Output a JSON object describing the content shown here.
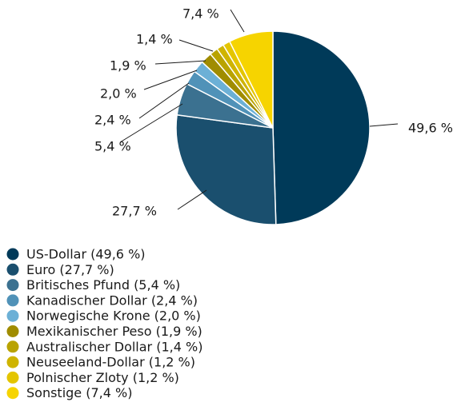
{
  "chart_data": {
    "type": "pie",
    "categories": [
      "US-Dollar (49,6 %)",
      "Euro (27,7 %)",
      "Britisches Pfund (5,4 %)",
      "Kanadischer Dollar (2,4 %)",
      "Norwegische Krone (2,0 %)",
      "Mexikanischer Peso (1,9 %)",
      "Australischer Dollar (1,4 %)",
      "Neuseeland-Dollar (1,2 %)",
      "Polnischer Zloty (1,2 %)",
      "Sonstige (7,4 %)"
    ],
    "values": [
      49.6,
      27.7,
      5.4,
      2.4,
      2.0,
      1.9,
      1.4,
      1.2,
      1.2,
      7.4
    ],
    "value_labels": [
      "49,6 %",
      "27,7 %",
      "5,4 %",
      "2,4 %",
      "2,0 %",
      "1,9 %",
      "1,4 %",
      null,
      null,
      "7,4 %"
    ],
    "colors": [
      "#003a59",
      "#1a4f6e",
      "#3b7190",
      "#5092b8",
      "#6cb0d6",
      "#a08c00",
      "#b9a300",
      "#cfb400",
      "#e4c500",
      "#f6d400"
    ]
  }
}
